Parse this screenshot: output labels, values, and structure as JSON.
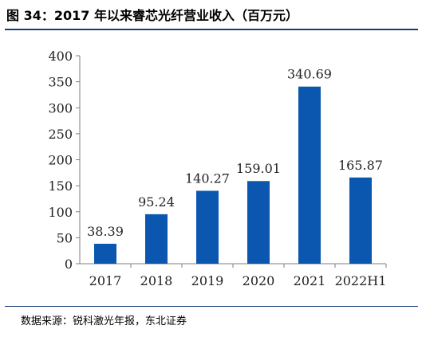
{
  "figure": {
    "title": "图 34：2017 年以来睿芯光纤营业收入（百万元）",
    "source": "数据来源：锐科激光年报，东北证券"
  },
  "colors": {
    "bar": "#0b57b0",
    "axis": "#7f7f7f",
    "rule": "#1a3c7a"
  },
  "chart_data": {
    "type": "bar",
    "title": "图 34：2017 年以来睿芯光纤营业收入（百万元）",
    "xlabel": "",
    "ylabel": "",
    "categories": [
      "2017",
      "2018",
      "2019",
      "2020",
      "2021",
      "2022H1"
    ],
    "values": [
      38.39,
      95.24,
      140.27,
      159.01,
      340.69,
      165.87
    ],
    "value_labels": [
      "38.39",
      "95.24",
      "140.27",
      "159.01",
      "340.69",
      "165.87"
    ],
    "ylim": [
      0,
      400
    ],
    "yticks": [
      0,
      50,
      100,
      150,
      200,
      250,
      300,
      350,
      400
    ],
    "grid": false,
    "legend": "none"
  }
}
